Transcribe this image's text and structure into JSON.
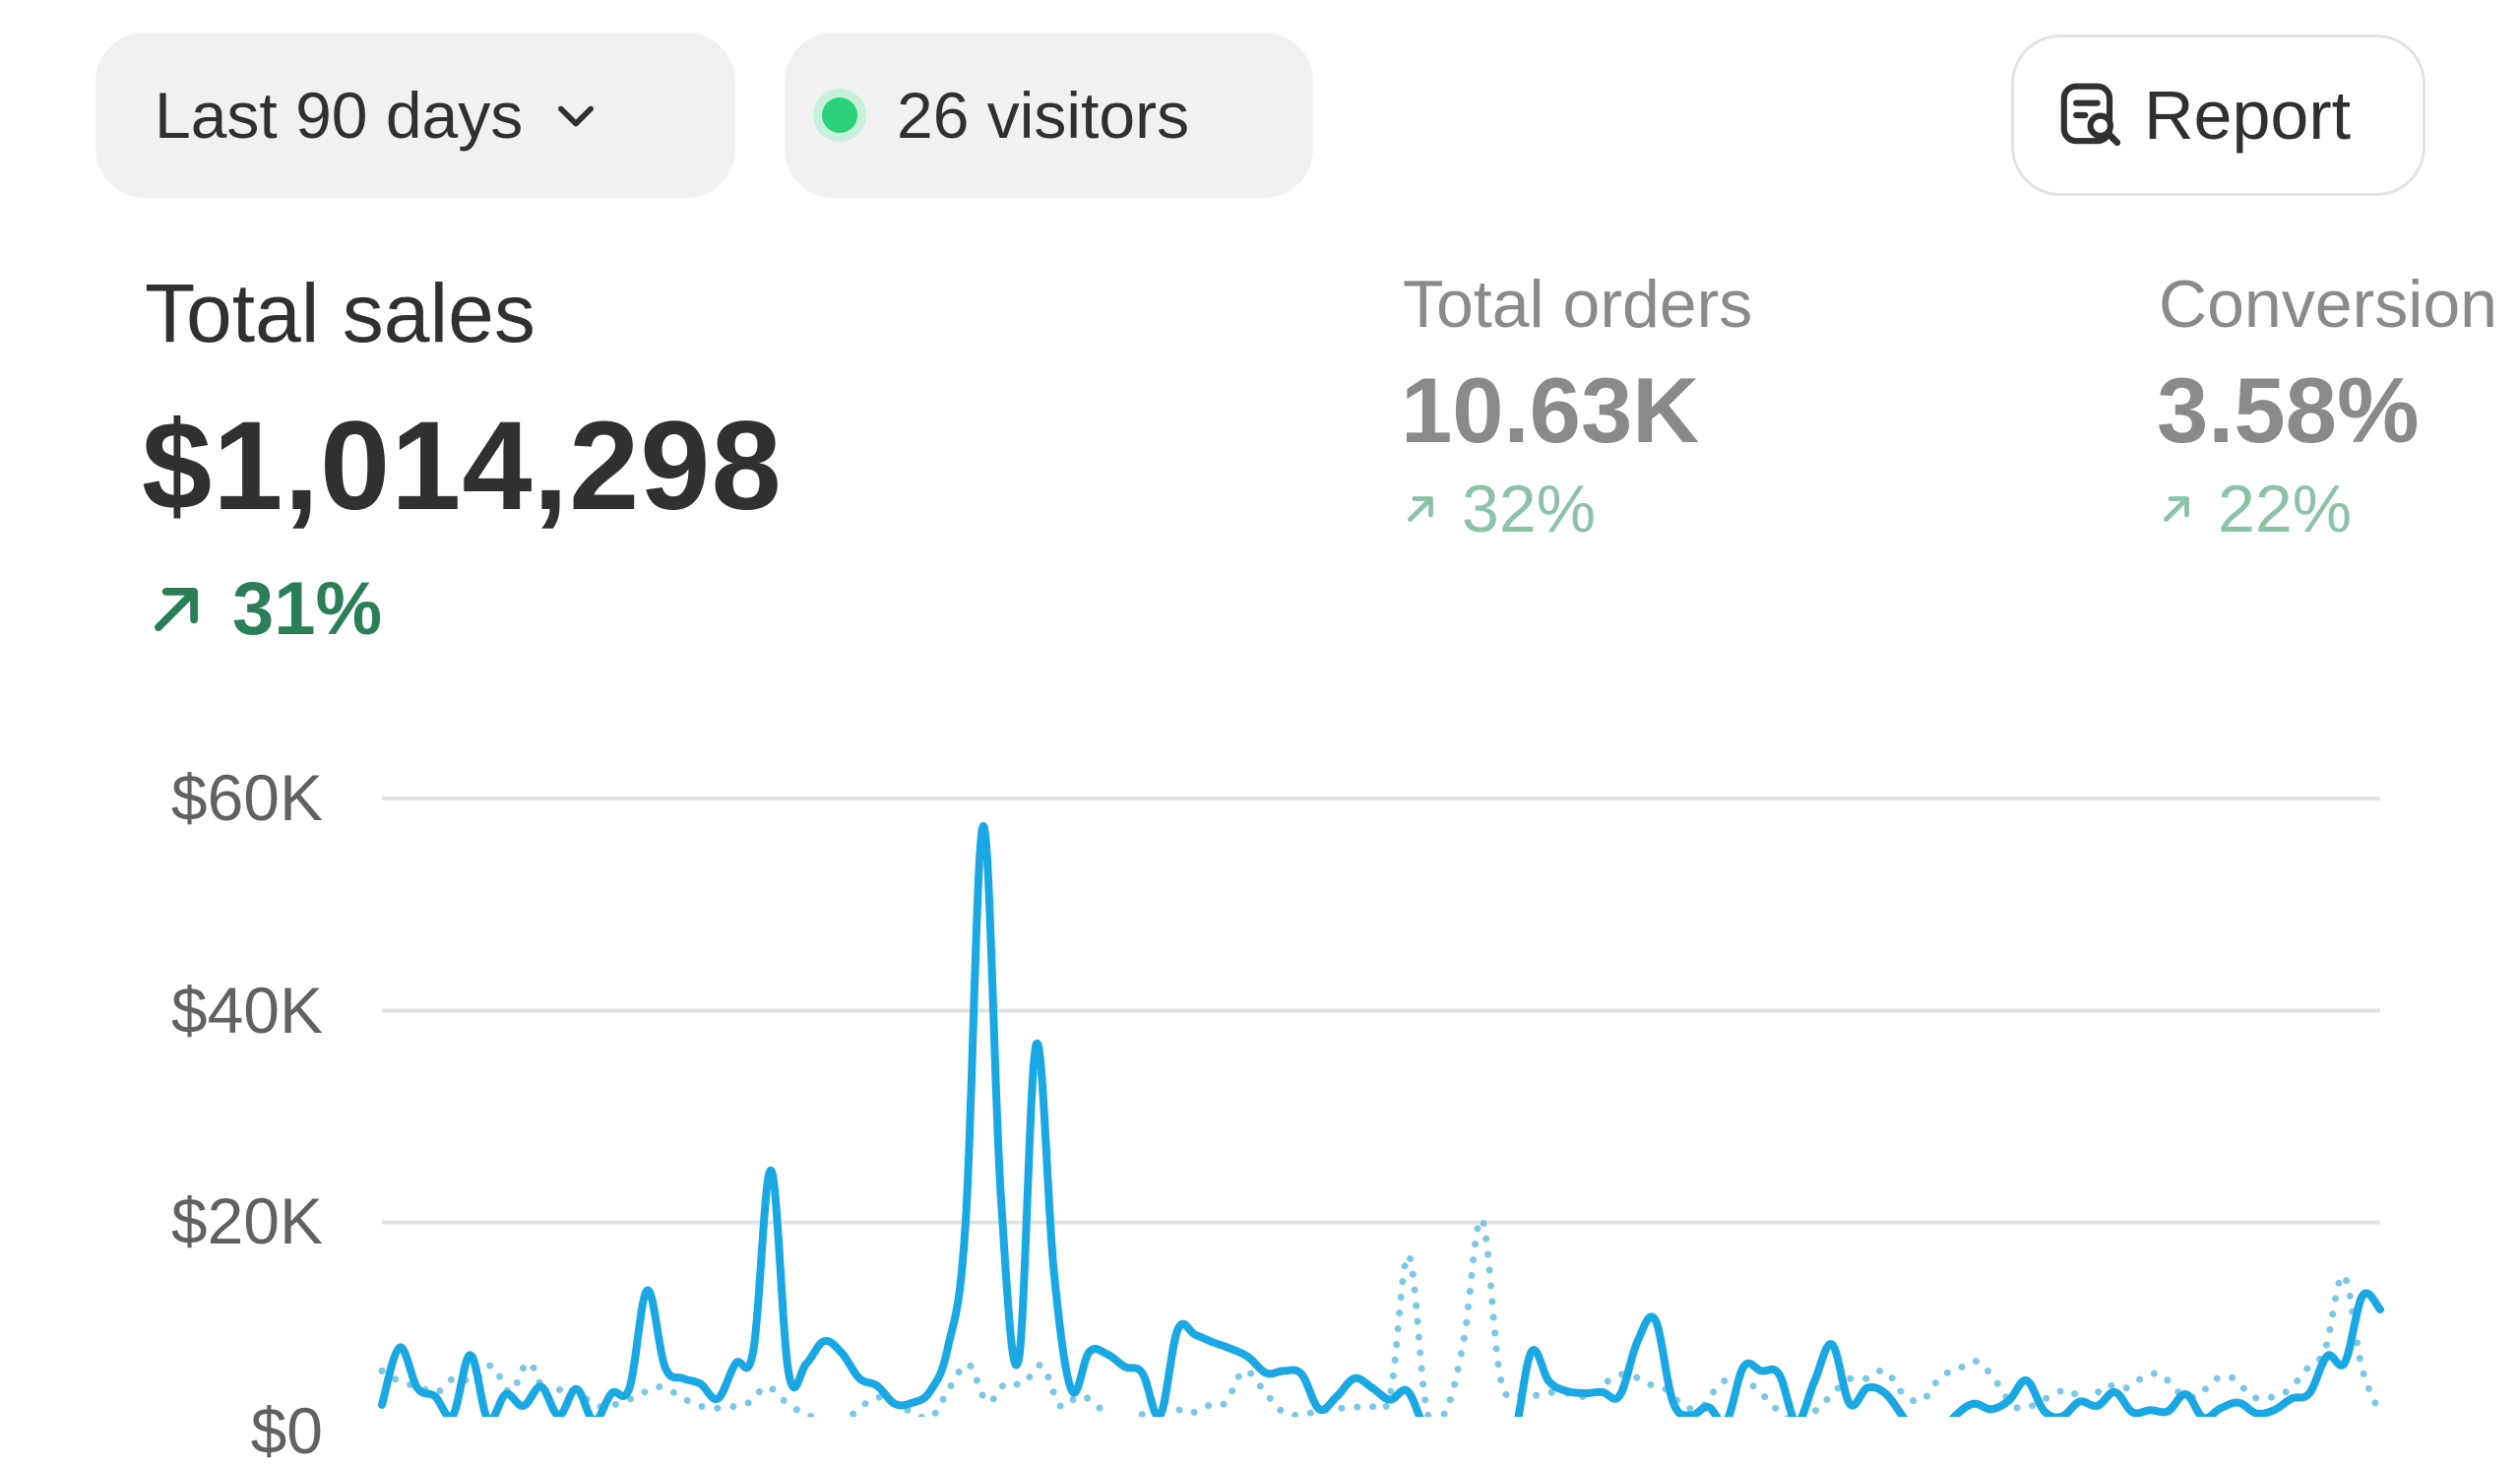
{
  "toolbar": {
    "date_range_label": "Last 90 days",
    "visitors_label": "26 visitors",
    "report_label": "Report"
  },
  "metrics": {
    "total_sales": {
      "label": "Total sales",
      "value": "$1,014,298",
      "change": "31%"
    },
    "total_orders": {
      "label": "Total orders",
      "value": "10.63K",
      "change": "32%"
    },
    "conversion": {
      "label": "Conversion",
      "value": "3.58%",
      "change": "22%"
    }
  },
  "colors": {
    "positive_change": "#2a7f56",
    "positive_change_muted": "#8cc3a8",
    "current_series": "#1aa8e4",
    "comparison_series": "#7cc7e8",
    "live_dot": "#29d17a"
  },
  "chart_data": {
    "type": "line",
    "y_tick_labels": [
      "$60K",
      "$40K",
      "$20K",
      "$0"
    ],
    "ylim": [
      0,
      64000
    ],
    "grid": true,
    "series": [
      {
        "values": [
          2800,
          8200,
          4400,
          3600,
          1800,
          7500,
          1400,
          3800,
          2700,
          4500,
          1800,
          4300,
          1300,
          3900,
          4400,
          13600,
          6400,
          5300,
          4800,
          3400,
          6700,
          7900,
          24900,
          5800,
          6700,
          8800,
          7700,
          5300,
          4600,
          2900,
          3000,
          4100,
          8200,
          19800,
          57400,
          22400,
          7000,
          36800,
          15300,
          4200,
          7800,
          7600,
          6400,
          5800,
          1800,
          9900,
          9400,
          8700,
          8100,
          7300,
          5800,
          6000,
          5700,
          2400,
          3600,
          5300,
          4400,
          3300,
          4100,
          600,
          -300,
          -400,
          -500,
          -600,
          -200,
          7800,
          5000,
          4100,
          3900,
          4000,
          3700,
          8800,
          10800,
          3100,
          1800,
          2600,
          1200,
          6400,
          6000,
          5700,
          1200,
          5000,
          8500,
          2900,
          4400,
          3900,
          1700,
          -700,
          -100,
          1800,
          2900,
          2400,
          3200,
          5100,
          2200,
          1700,
          3100,
          2700,
          4000,
          2100,
          2300,
          2200,
          3800,
          1600,
          2500,
          3000,
          2000,
          2300,
          3400,
          3900,
          7400,
          6800,
          13100,
          11800
        ]
      },
      {
        "values": [
          6000,
          5000,
          4500,
          4000,
          5400,
          5000,
          6500,
          4000,
          6800,
          3600,
          4500,
          3500,
          2600,
          3000,
          3700,
          4500,
          3900,
          2900,
          2500,
          2600,
          3000,
          4500,
          3100,
          2000,
          1400,
          1000,
          2400,
          3500,
          3000,
          2000,
          1700,
          4500,
          6600,
          3100,
          4800,
          4800,
          6500,
          2700,
          3600,
          2800,
          400,
          700,
          3200,
          2800,
          2000,
          2700,
          3000,
          6000,
          4400,
          2300,
          1800,
          2200,
          2400,
          2600,
          2600,
          3800,
          16900,
          2200,
          2100,
          8800,
          20300,
          5400,
          3800,
          3700,
          4000,
          3800,
          3600,
          5200,
          5700,
          4800,
          4300,
          2700,
          2600,
          4800,
          5300,
          4300,
          2500,
          1300,
          2000,
          3600,
          5200,
          5300,
          6000,
          3800,
          3200,
          5400,
          6200,
          6900,
          5100,
          2700,
          2700,
          3600,
          4200,
          3000,
          4600,
          4300,
          5300,
          5700,
          4000,
          3600,
          5200,
          5300,
          3600,
          3500,
          4200,
          6200,
          8100,
          15000,
          6300,
          2000
        ]
      }
    ]
  }
}
